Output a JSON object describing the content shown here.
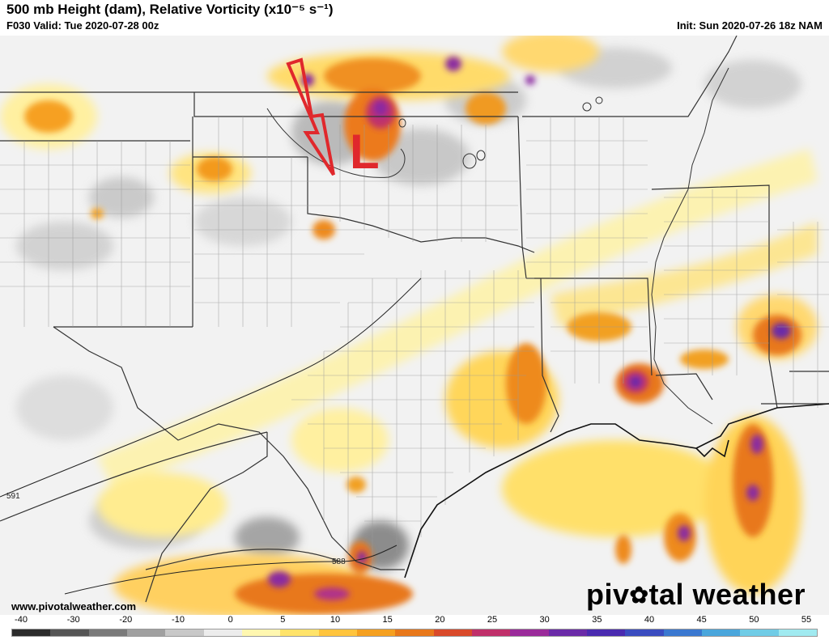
{
  "header": {
    "title": "500 mb Height (dam), Relative Vorticity (x10⁻⁵ s⁻¹)",
    "valid": "F030 Valid: Tue 2020-07-28 00z",
    "init": "Init: Sun 2020-07-26 18z NAM"
  },
  "annotation": {
    "low_label": "L",
    "arrow_color": "#e0282c"
  },
  "contours": {
    "label_591": "591",
    "label_588": "588"
  },
  "footer": {
    "website": "www.pivotalweather.com",
    "brand_left": "piv",
    "brand_right": "tal weather",
    "brand_gear_icon": "gear-icon"
  },
  "colorbar": {
    "ticks": [
      "-40",
      "-30",
      "-20",
      "-10",
      "0",
      "5",
      "10",
      "15",
      "20",
      "25",
      "30",
      "35",
      "40",
      "45",
      "50",
      "55"
    ],
    "colors": [
      "#2b2b2b",
      "#555555",
      "#7a7a7a",
      "#a0a0a0",
      "#c8c8c8",
      "#ececec",
      "#fff7b0",
      "#ffe36a",
      "#ffc43d",
      "#f5a020",
      "#e8781a",
      "#d94a2a",
      "#c0306a",
      "#9a2a9a",
      "#6a2aa8",
      "#4a2ab0",
      "#3a4cc0",
      "#3a78d0",
      "#4aa6dc",
      "#70cce6",
      "#a0eaf0"
    ]
  }
}
